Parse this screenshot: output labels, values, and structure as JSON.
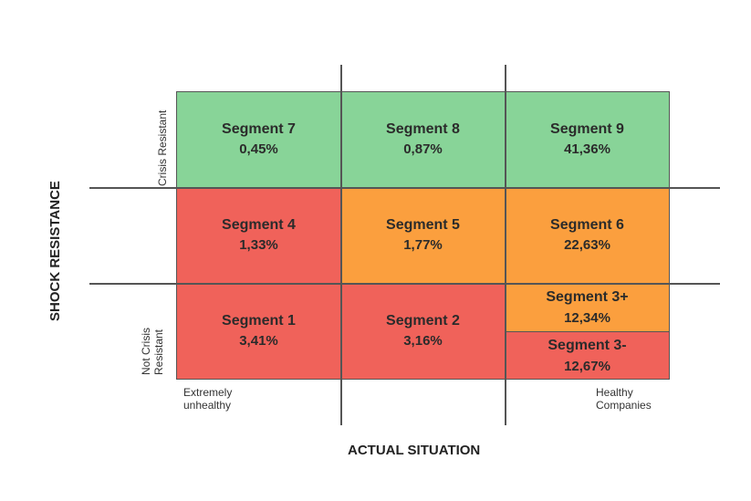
{
  "axes": {
    "y_title": "SHOCK RESISTANCE",
    "x_title": "ACTUAL SITUATION",
    "y_top_label": "Crisis Resistant",
    "y_bottom_label_line1": "Not Crisis",
    "y_bottom_label_line2": "Resistant",
    "x_left_label_line1": "Extremely",
    "x_left_label_line2": "unhealthy",
    "x_right_label_line1": "Healthy",
    "x_right_label_line2": "Companies"
  },
  "colors": {
    "green": "#88d498",
    "red": "#f0625a",
    "orange": "#fb9f3e"
  },
  "segments": {
    "s7": {
      "name": "Segment 7",
      "value": "0,45%",
      "color": "green"
    },
    "s8": {
      "name": "Segment 8",
      "value": "0,87%",
      "color": "green"
    },
    "s9": {
      "name": "Segment 9",
      "value": "41,36%",
      "color": "green"
    },
    "s4": {
      "name": "Segment 4",
      "value": "1,33%",
      "color": "red"
    },
    "s5": {
      "name": "Segment 5",
      "value": "1,77%",
      "color": "orange"
    },
    "s6": {
      "name": "Segment 6",
      "value": "22,63%",
      "color": "orange"
    },
    "s1": {
      "name": "Segment 1",
      "value": "3,41%",
      "color": "red"
    },
    "s2": {
      "name": "Segment 2",
      "value": "3,16%",
      "color": "red"
    },
    "s3plus": {
      "name": "Segment 3+",
      "value": "12,34%",
      "color": "orange"
    },
    "s3minus": {
      "name": "Segment 3-",
      "value": "12,67%",
      "color": "red"
    }
  }
}
